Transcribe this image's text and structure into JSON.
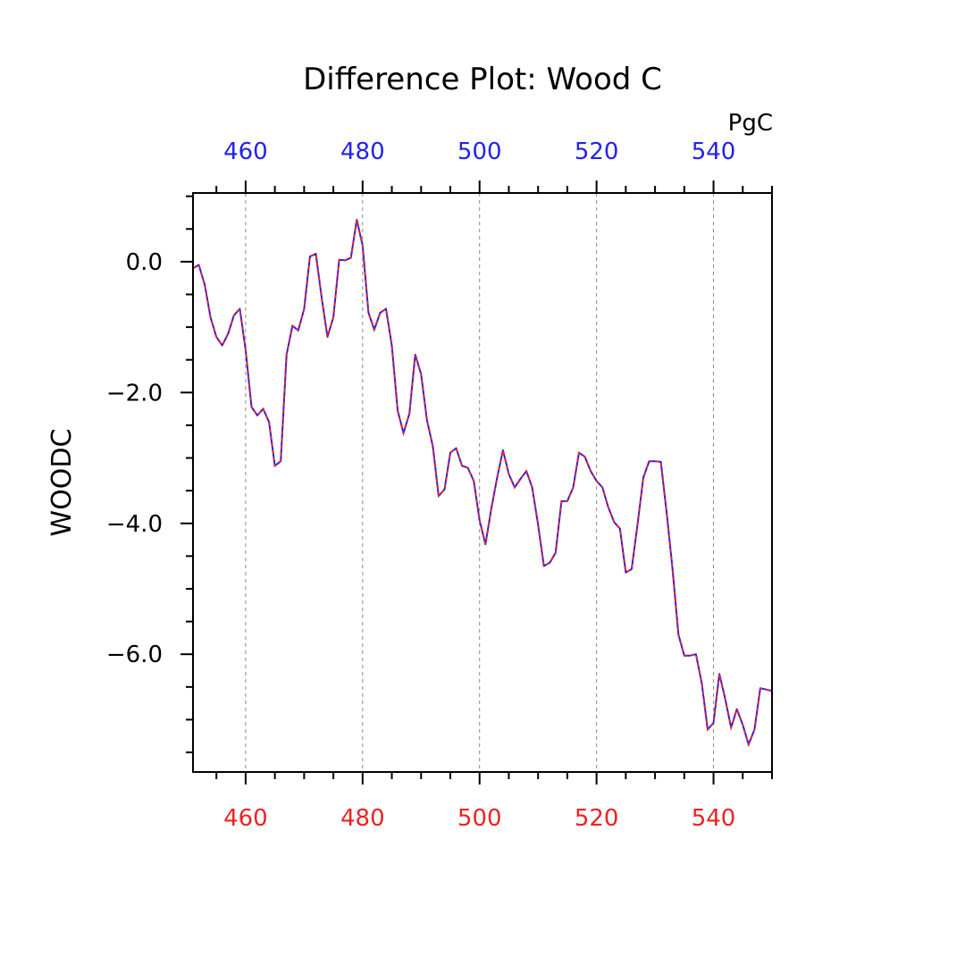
{
  "chart_data": {
    "type": "line",
    "title": "Difference Plot: Wood C",
    "units_label": "PgC",
    "ylabel": "WOODC",
    "xlim": [
      451,
      550
    ],
    "ylim": [
      -7.8,
      1.05
    ],
    "top_axis_color": "#2222ee",
    "bottom_axis_color": "#ee2222",
    "line_color_1": "#2222ee",
    "line_color_2": "#ee2222",
    "grid_x": true,
    "x_ticks": [
      460,
      480,
      500,
      520,
      540
    ],
    "x_tick_labels_top": [
      "460",
      "480",
      "500",
      "520",
      "540"
    ],
    "x_tick_labels_bottom": [
      "460",
      "480",
      "500",
      "520",
      "540"
    ],
    "y_ticks": [
      0,
      -2,
      -4,
      -6
    ],
    "y_tick_labels": [
      "0.0",
      "−2.0",
      "−4.0",
      "−6.0"
    ],
    "x": [
      451,
      452,
      453,
      454,
      455,
      456,
      457,
      458,
      459,
      460,
      461,
      462,
      463,
      464,
      465,
      466,
      467,
      468,
      469,
      470,
      471,
      472,
      473,
      474,
      475,
      476,
      477,
      478,
      479,
      480,
      481,
      482,
      483,
      484,
      485,
      486,
      487,
      488,
      489,
      490,
      491,
      492,
      493,
      494,
      495,
      496,
      497,
      498,
      499,
      500,
      501,
      502,
      503,
      504,
      505,
      506,
      507,
      508,
      509,
      510,
      511,
      512,
      513,
      514,
      515,
      516,
      517,
      518,
      519,
      520,
      521,
      522,
      523,
      524,
      525,
      526,
      527,
      528,
      529,
      530,
      531,
      532,
      533,
      534,
      535,
      536,
      537,
      538,
      539,
      540,
      541,
      542,
      543,
      544,
      545,
      546,
      547,
      548,
      549,
      550
    ],
    "y": [
      -0.1,
      -0.05,
      -0.35,
      -0.85,
      -1.15,
      -1.28,
      -1.1,
      -0.82,
      -0.72,
      -1.35,
      -2.22,
      -2.35,
      -2.25,
      -2.45,
      -3.12,
      -3.05,
      -1.42,
      -0.98,
      -1.05,
      -0.72,
      0.08,
      0.12,
      -0.55,
      -1.15,
      -0.85,
      0.03,
      0.02,
      0.06,
      0.64,
      0.25,
      -0.78,
      -1.04,
      -0.78,
      -0.72,
      -1.28,
      -2.28,
      -2.62,
      -2.32,
      -1.42,
      -1.72,
      -2.42,
      -2.82,
      -3.58,
      -3.48,
      -2.92,
      -2.85,
      -3.12,
      -3.15,
      -3.35,
      -3.95,
      -4.32,
      -3.78,
      -3.3,
      -2.88,
      -3.25,
      -3.45,
      -3.32,
      -3.2,
      -3.45,
      -4.02,
      -4.65,
      -4.6,
      -4.45,
      -3.66,
      -3.66,
      -3.45,
      -2.92,
      -2.98,
      -3.2,
      -3.35,
      -3.45,
      -3.75,
      -3.98,
      -4.08,
      -4.75,
      -4.7,
      -4.02,
      -3.3,
      -3.05,
      -3.05,
      -3.06,
      -3.85,
      -4.7,
      -5.7,
      -6.02,
      -6.02,
      -6.0,
      -6.45,
      -7.15,
      -7.05,
      -6.3,
      -6.68,
      -7.12,
      -6.84,
      -7.08,
      -7.38,
      -7.15,
      -6.52,
      -6.54,
      -6.56
    ]
  }
}
